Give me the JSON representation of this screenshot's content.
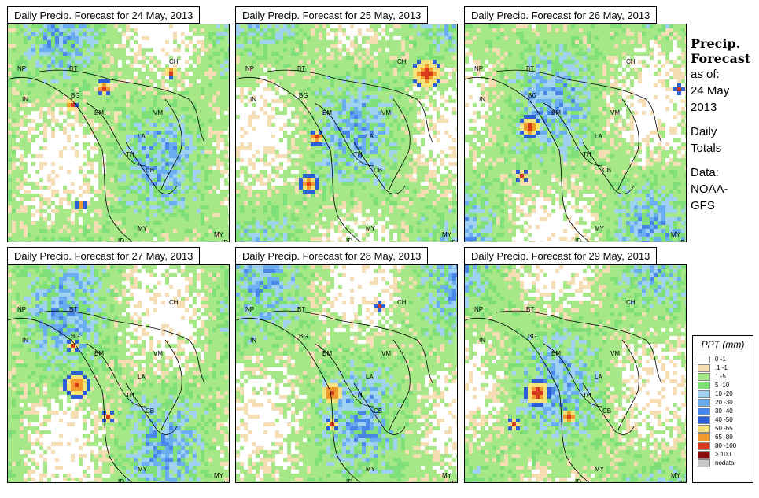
{
  "panels": [
    {
      "title": "Daily Precip. Forecast for  24 May, 2013"
    },
    {
      "title": "Daily Precip. Forecast for  25 May, 2013"
    },
    {
      "title": "Daily Precip. Forecast for  26 May, 2013"
    },
    {
      "title": "Daily Precip. Forecast for  27 May, 2013"
    },
    {
      "title": "Daily Precip. Forecast for  28 May, 2013"
    },
    {
      "title": "Daily Precip. Forecast for  29 May, 2013"
    }
  ],
  "country_labels": [
    "NP",
    "BT",
    "CH",
    "IN",
    "BG",
    "BM",
    "VM",
    "LA",
    "TH",
    "CB",
    "MY",
    "ID",
    "MY",
    "ID"
  ],
  "sidebar": {
    "title_line1": "Precip.",
    "title_line2": "Forecast",
    "asof": "as of:",
    "date_line1": "24 May",
    "date_line2": "2013",
    "daily1": "Daily",
    "daily2": "Totals",
    "data1": "Data:",
    "data2": "NOAA-",
    "data3": "GFS"
  },
  "legend": {
    "title": "PPT (mm)",
    "items": [
      {
        "label": "0 -1",
        "color": "#ffffff"
      },
      {
        "label": ".1 -1",
        "color": "#f5deb3"
      },
      {
        "label": "1 -5",
        "color": "#a6e887"
      },
      {
        "label": "5 -10",
        "color": "#7fe07a"
      },
      {
        "label": "10 -20",
        "color": "#9ed2f0"
      },
      {
        "label": "20 -30",
        "color": "#6aaef0"
      },
      {
        "label": "30 -40",
        "color": "#4a86e8"
      },
      {
        "label": "40 -50",
        "color": "#2a5fd8"
      },
      {
        "label": "50 -65",
        "color": "#f6e27a"
      },
      {
        "label": "65 -80",
        "color": "#f39a2e"
      },
      {
        "label": "80 -100",
        "color": "#d83a1e"
      },
      {
        "label": "> 100",
        "color": "#8b0d0d"
      },
      {
        "label": "nodata",
        "color": "#c8c8c8"
      }
    ]
  }
}
